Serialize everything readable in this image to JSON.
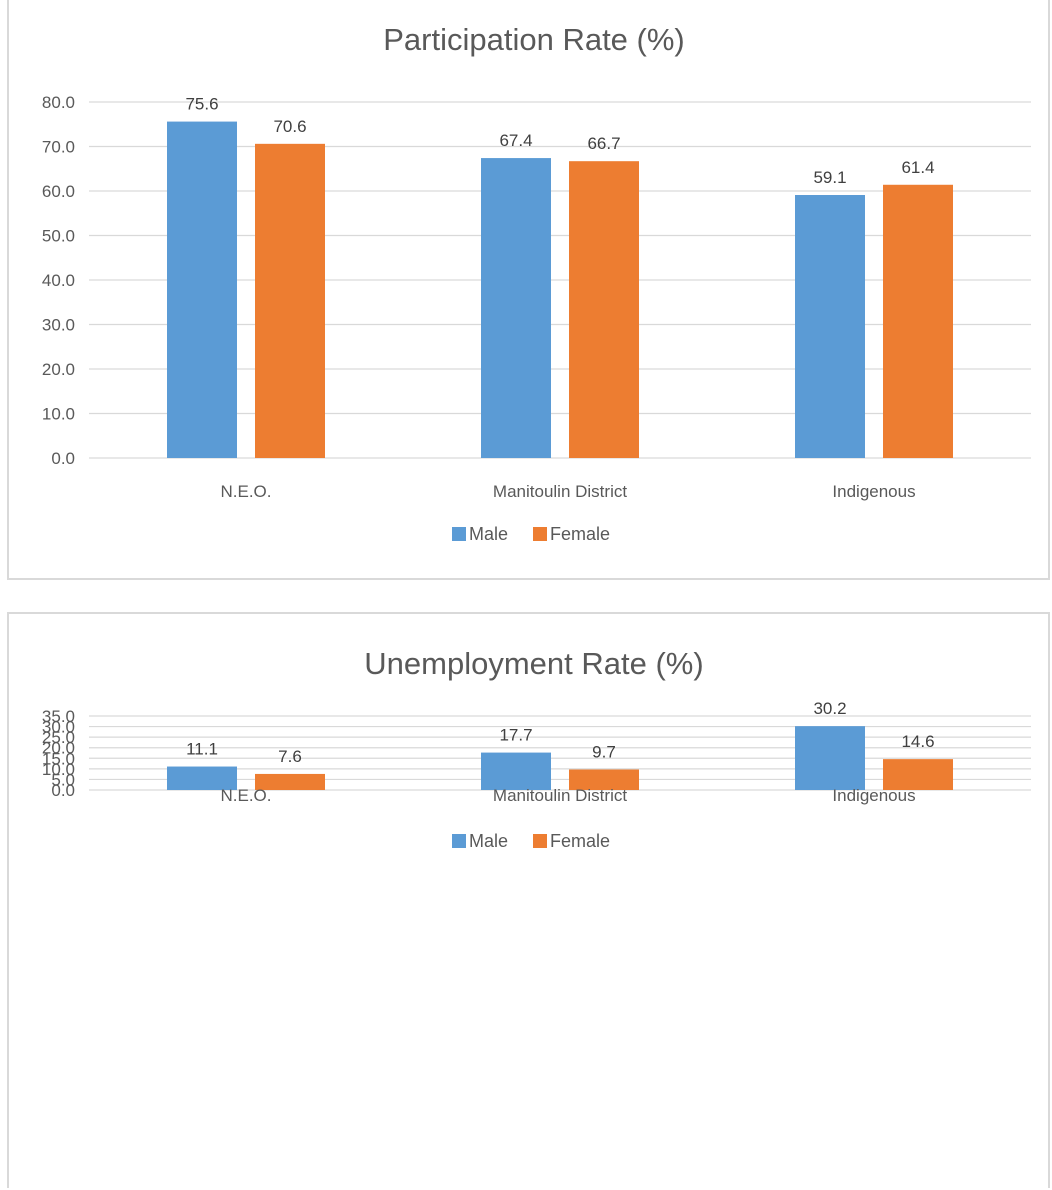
{
  "colors": {
    "male": "#5b9bd5",
    "female": "#ed7d31"
  },
  "chart_data": [
    {
      "type": "bar",
      "title": "Participation Rate (%)",
      "categories": [
        "N.E.O.",
        "Manitoulin District",
        "Indigenous"
      ],
      "series": [
        {
          "name": "Male",
          "values": [
            75.6,
            67.4,
            59.1
          ],
          "labels": [
            "75.6",
            "67.4",
            "59.1"
          ]
        },
        {
          "name": "Female",
          "values": [
            70.6,
            66.7,
            61.4
          ],
          "labels": [
            "70.6",
            "66.7",
            "61.4"
          ]
        }
      ],
      "yticks": [
        "0.0",
        "10.0",
        "20.0",
        "30.0",
        "40.0",
        "50.0",
        "60.0",
        "70.0",
        "80.0"
      ],
      "ylim": [
        0,
        80
      ],
      "ystep": 10,
      "grid": true,
      "legend": "bottom"
    },
    {
      "type": "bar",
      "title": "Unemployment Rate (%)",
      "categories": [
        "N.E.O.",
        "Manitoulin District",
        "Indigenous"
      ],
      "series": [
        {
          "name": "Male",
          "values": [
            11.1,
            17.7,
            30.2
          ],
          "labels": [
            "11.1",
            "17.7",
            "30.2"
          ]
        },
        {
          "name": "Female",
          "values": [
            7.6,
            9.7,
            14.6
          ],
          "labels": [
            "7.6",
            "9.7",
            "14.6"
          ]
        }
      ],
      "yticks": [
        "0.0",
        "5.0",
        "10.0",
        "15.0",
        "20.0",
        "25.0",
        "30.0",
        "35.0"
      ],
      "ylim": [
        0,
        35
      ],
      "ystep": 5,
      "grid": true,
      "legend": "bottom"
    }
  ]
}
